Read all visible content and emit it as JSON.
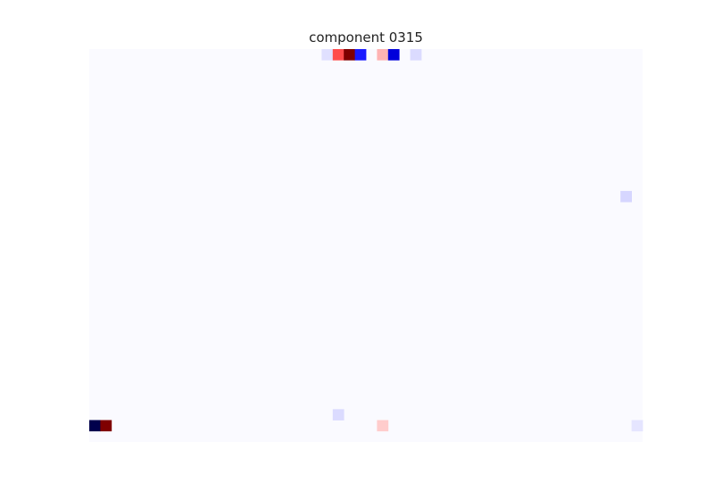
{
  "chart_data": {
    "type": "heatmap",
    "title": "component 0315",
    "xlabel": "",
    "ylabel": "",
    "grid": false,
    "legend": "none",
    "colormap": "seismic",
    "vmin": -1,
    "vmax": 1,
    "n_rows": 36,
    "n_cols": 50,
    "cells": [
      {
        "row": 0,
        "col": 21,
        "value": -0.06
      },
      {
        "row": 0,
        "col": 22,
        "value": 0.35
      },
      {
        "row": 0,
        "col": 23,
        "value": 1.0
      },
      {
        "row": 0,
        "col": 24,
        "value": -0.45
      },
      {
        "row": 0,
        "col": 26,
        "value": 0.15
      },
      {
        "row": 0,
        "col": 27,
        "value": -0.6
      },
      {
        "row": 0,
        "col": 29,
        "value": -0.07
      },
      {
        "row": 13,
        "col": 48,
        "value": -0.08
      },
      {
        "row": 33,
        "col": 22,
        "value": -0.07
      },
      {
        "row": 34,
        "col": 0,
        "value": -1.0
      },
      {
        "row": 34,
        "col": 1,
        "value": 1.0
      },
      {
        "row": 34,
        "col": 26,
        "value": 0.1
      },
      {
        "row": 34,
        "col": 49,
        "value": -0.05
      }
    ]
  }
}
